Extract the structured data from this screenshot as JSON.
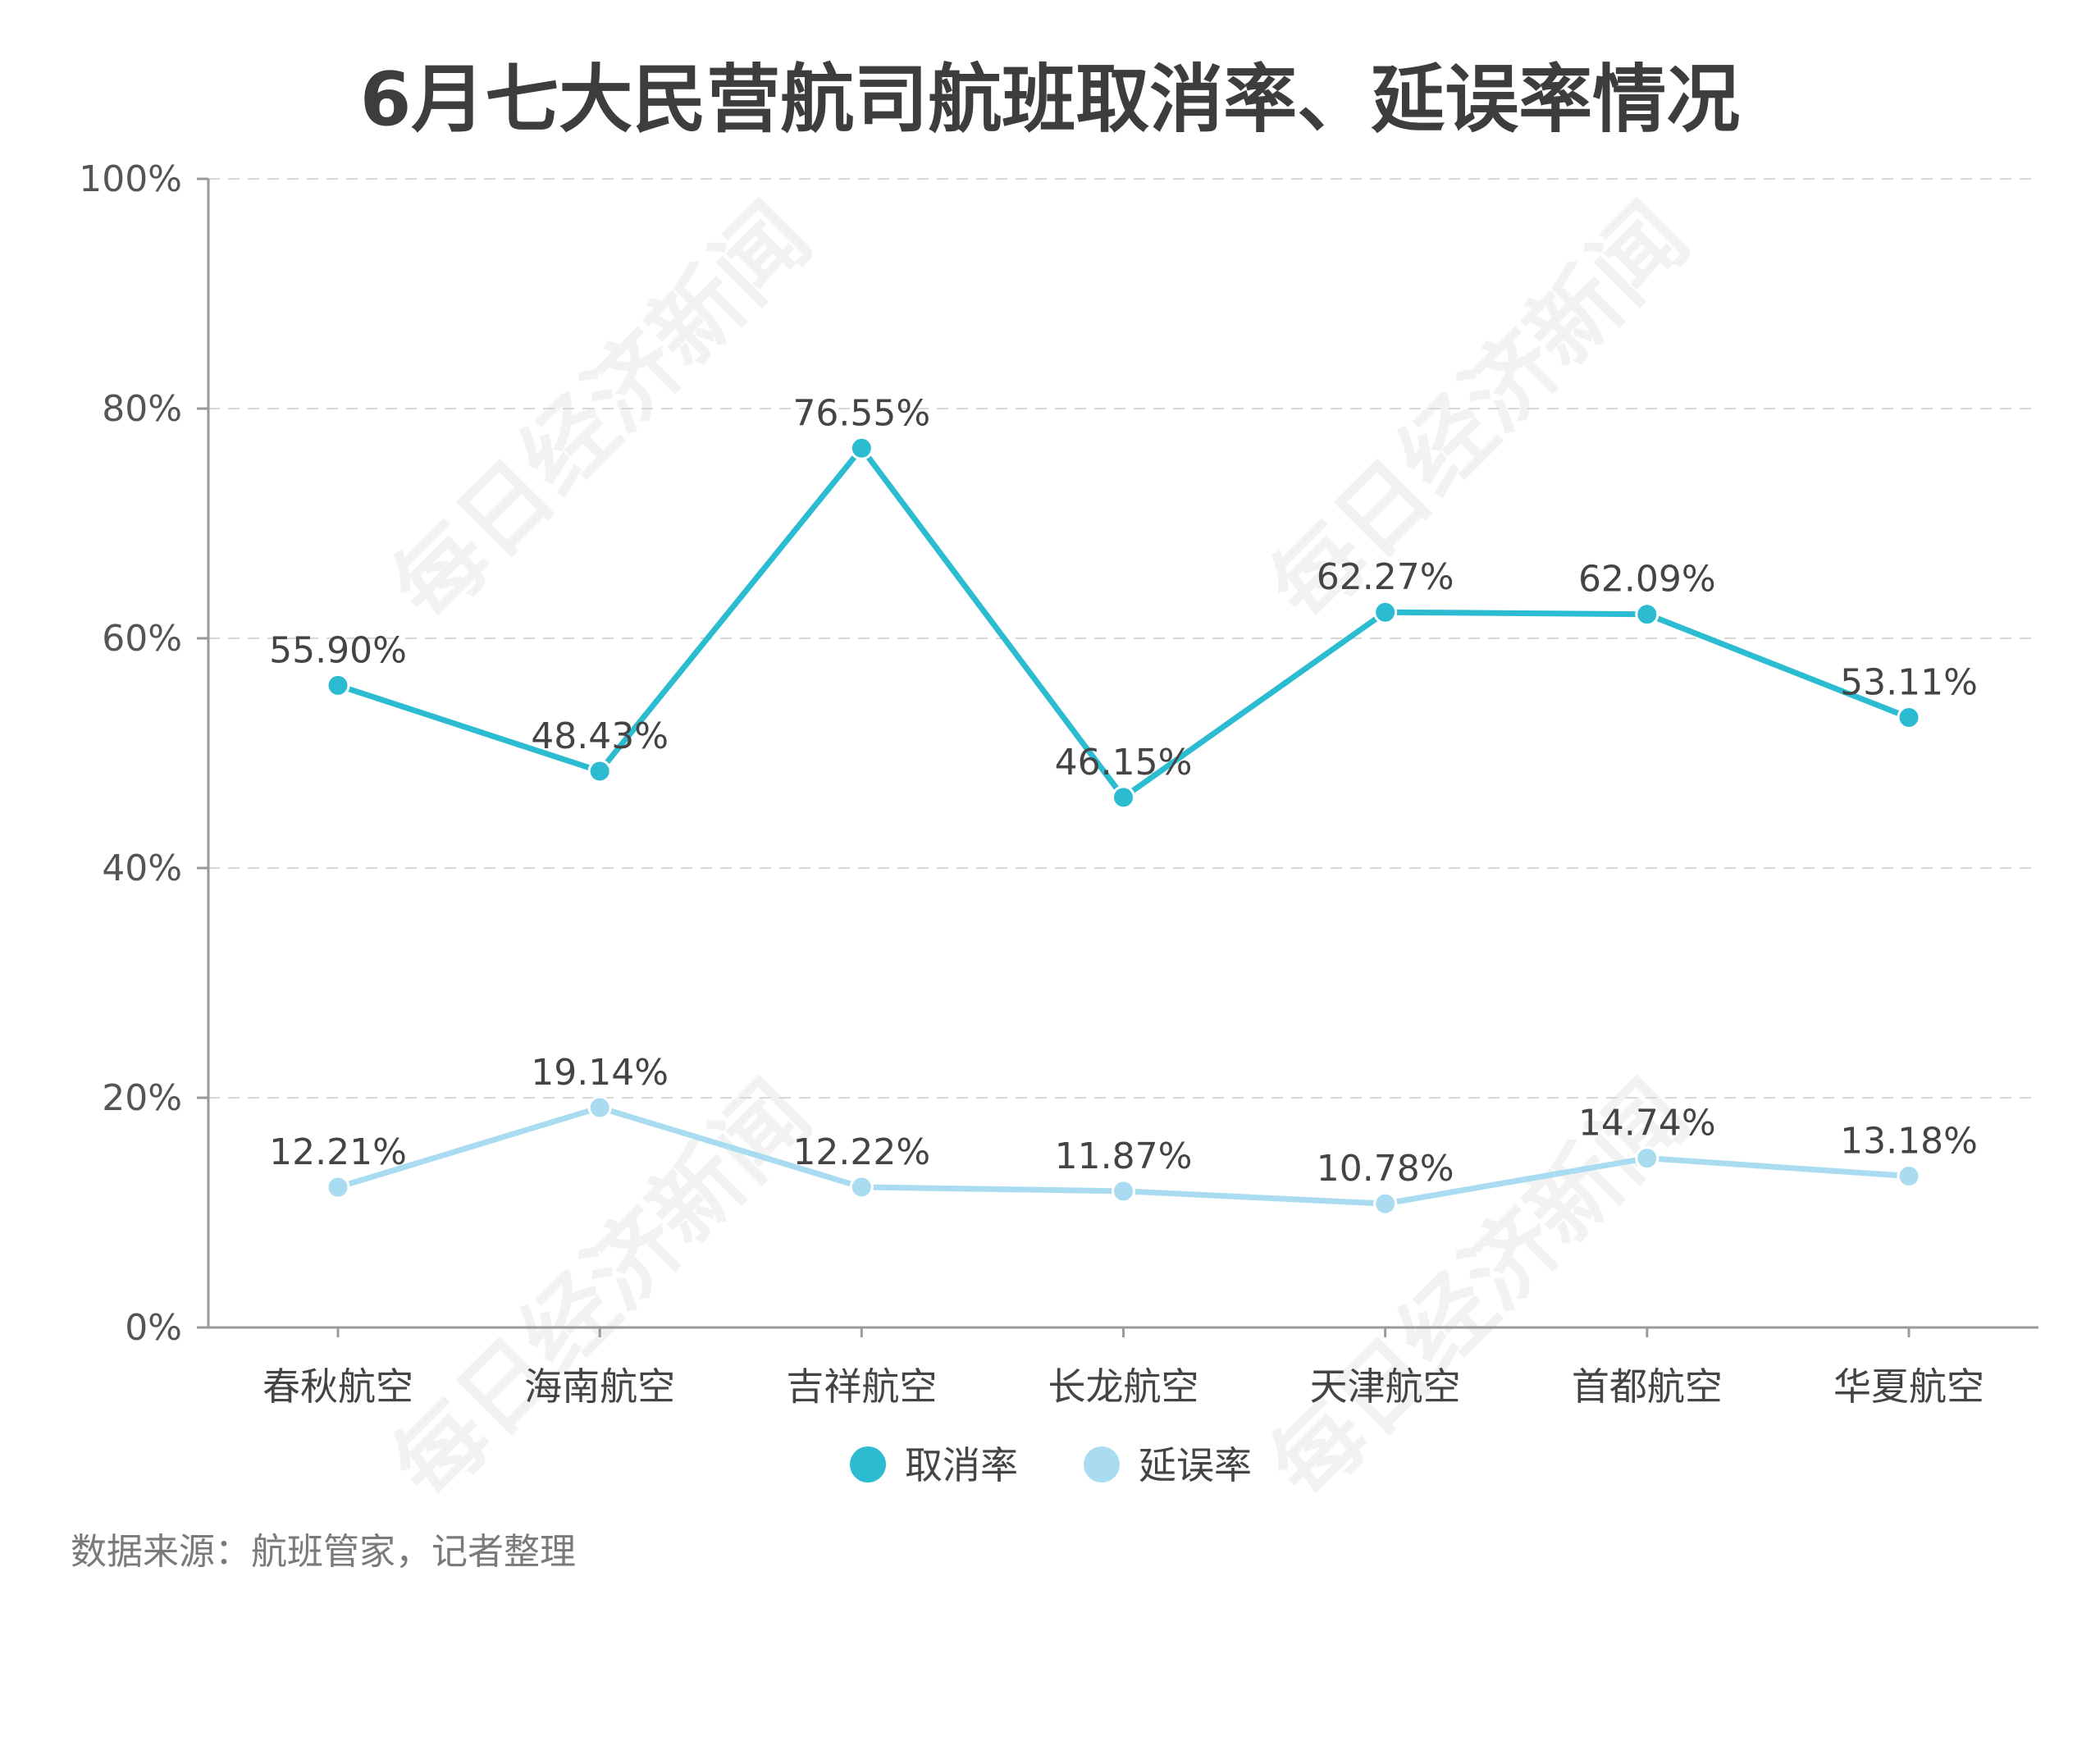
{
  "chart_data": {
    "type": "line",
    "title": "6月七大民营航司航班取消率、延误率情况",
    "categories": [
      "春秋航空",
      "海南航空",
      "吉祥航空",
      "长龙航空",
      "天津航空",
      "首都航空",
      "华夏航空"
    ],
    "series": [
      {
        "name": "取消率",
        "color": "#2bbcd1",
        "values": [
          55.9,
          48.43,
          76.55,
          46.15,
          62.27,
          62.09,
          53.11
        ],
        "labels": [
          "55.90%",
          "48.43%",
          "76.55%",
          "46.15%",
          "62.27%",
          "62.09%",
          "53.11%"
        ]
      },
      {
        "name": "延误率",
        "color": "#a9dcf0",
        "values": [
          12.21,
          19.14,
          12.22,
          11.87,
          10.78,
          14.74,
          13.18
        ],
        "labels": [
          "12.21%",
          "19.14%",
          "12.22%",
          "11.87%",
          "10.78%",
          "14.74%",
          "13.18%"
        ]
      }
    ],
    "ylim": [
      0,
      100
    ],
    "yticks": [
      0,
      20,
      40,
      60,
      80,
      100
    ],
    "ytick_labels": [
      "0%",
      "20%",
      "40%",
      "60%",
      "80%",
      "100%"
    ],
    "grid": true,
    "legend_position": "bottom-center"
  },
  "source": "数据来源：航班管家，记者整理",
  "watermark": "每日经济新闻"
}
